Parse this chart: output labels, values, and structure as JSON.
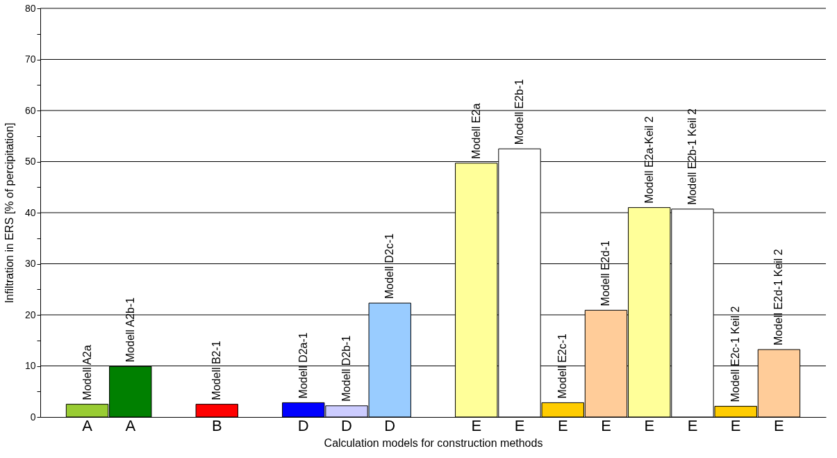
{
  "chart_data": {
    "type": "bar",
    "xlabel": "Calculation models for construction methods",
    "ylabel": "Infiltration in ERS [% of percipitation]",
    "categories": [
      "A",
      "A",
      null,
      "B",
      null,
      "D",
      "D",
      "D",
      null,
      "E",
      "E",
      "E",
      "E",
      "E",
      "E",
      "E",
      "E"
    ],
    "values": [
      2.5,
      9.9,
      null,
      2.5,
      null,
      2.8,
      2.2,
      22.3,
      null,
      49.7,
      52.5,
      2.8,
      20.9,
      41.0,
      40.7,
      2.1,
      13.2
    ],
    "colors": [
      "#99cc33",
      "#008000",
      null,
      "#ff0000",
      null,
      "#0000ff",
      "#ccccff",
      "#99ccff",
      null,
      "#ffff99",
      "#ffffff",
      "#ffcc00",
      "#ffcc99",
      "#ffff99",
      "#ffffff",
      "#ffcc00",
      "#ffcc99"
    ],
    "value_labels": [
      "Modell A2a",
      "Modell A2b-1",
      null,
      "Modell B2-1",
      null,
      "Modell D2a-1",
      "Modell D2b-1",
      "Modell D2c-1",
      null,
      "Modell E2a",
      "Modell E2b-1",
      "Modell E2c-1",
      "Modell E2d-1",
      "Modell E2a-Keil 2",
      "Modell E2b-1 Keil 2",
      "Modell E2c-1 Keil 2",
      "Modell E2d-1 Keil 2"
    ],
    "ylim": [
      0,
      80
    ],
    "yticks": [
      0,
      {
        "value": 5,
        "label": null
      },
      10,
      {
        "value": 15,
        "label": null
      },
      20,
      {
        "value": 25,
        "label": null
      },
      30,
      {
        "value": 35,
        "label": null
      },
      40,
      {
        "value": 45,
        "label": null
      },
      50,
      {
        "value": 55,
        "label": null
      },
      60,
      {
        "value": 65,
        "label": null
      },
      70,
      {
        "value": 75,
        "label": null
      },
      80
    ],
    "grid": "y"
  }
}
